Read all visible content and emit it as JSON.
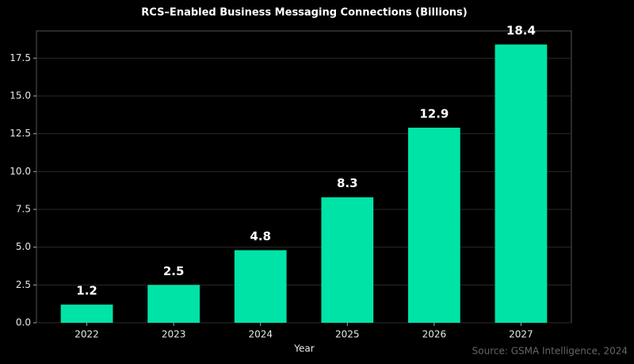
{
  "chart_data": {
    "type": "bar",
    "title": "RCS–Enabled Business Messaging Connections (Billions)",
    "x_label": "Year",
    "source": "Source: GSMA Intelligence, 2024",
    "categories": [
      "2022",
      "2023",
      "2024",
      "2025",
      "2026",
      "2027"
    ],
    "values": [
      1.2,
      2.5,
      4.8,
      8.3,
      12.9,
      18.4
    ],
    "color": "#00e3a7",
    "ylim": [
      0,
      19.3
    ],
    "yticks": [
      {
        "value": 0,
        "label": "0.0"
      },
      {
        "value": 2.5,
        "label": "2.5"
      },
      {
        "value": 5,
        "label": "5.0"
      },
      {
        "value": 7.5,
        "label": "7.5"
      },
      {
        "value": 10,
        "label": "10.0"
      },
      {
        "value": 12.5,
        "label": "12.5"
      },
      {
        "value": 15,
        "label": "15.0"
      },
      {
        "value": 17.5,
        "label": "17.5"
      }
    ],
    "grid": true
  }
}
